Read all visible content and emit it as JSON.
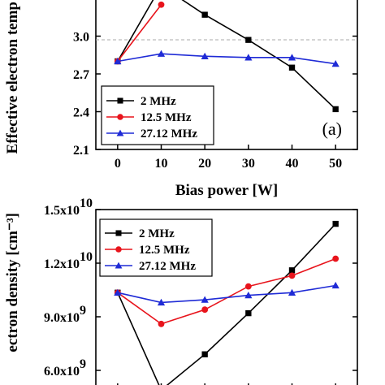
{
  "chart_data": [
    {
      "type": "line",
      "ylabel": "Effective electron temp",
      "xlabel": "Bias power [W]",
      "panel_label": "(a)",
      "x": [
        0,
        10,
        20,
        30,
        40,
        50
      ],
      "xlim": [
        -5,
        55
      ],
      "ylim": [
        2.1,
        3.3
      ],
      "y_ticks": [
        2.1,
        2.4,
        2.7,
        3.0
      ],
      "y_tick_labels": [
        "2.1",
        "2.4",
        "2.7",
        "3.0"
      ],
      "x_tick_labels": [
        "0",
        "10",
        "20",
        "30",
        "40",
        "50"
      ],
      "legend_position": "bottom-left",
      "series": [
        {
          "name": "2 MHz",
          "color": "#000000",
          "marker": "square",
          "values": [
            2.8,
            3.4,
            3.17,
            2.97,
            2.75,
            2.42
          ]
        },
        {
          "name": "12.5 MHz",
          "color": "#e8141c",
          "marker": "circle",
          "values": [
            2.8,
            3.25,
            null,
            null,
            null,
            null
          ]
        },
        {
          "name": "27.12 MHz",
          "color": "#1f2bd6",
          "marker": "triangle",
          "values": [
            2.8,
            2.86,
            2.84,
            2.83,
            2.83,
            2.78
          ]
        }
      ]
    },
    {
      "type": "line",
      "ylabel": "ectron density [cm⁻³]",
      "x": [
        0,
        10,
        20,
        30,
        40,
        50
      ],
      "xlim": [
        -5,
        55
      ],
      "ylim": [
        5000000000.0,
        15000000000.0
      ],
      "y_ticks": [
        6000000000.0,
        9000000000.0,
        12000000000.0,
        15000000000.0
      ],
      "y_tick_labels": [
        {
          "mantissa": "6.0x10",
          "exp": "9"
        },
        {
          "mantissa": "9.0x10",
          "exp": "9"
        },
        {
          "mantissa": "1.2x10",
          "exp": "10"
        },
        {
          "mantissa": "1.5x10",
          "exp": "10"
        }
      ],
      "legend_position": "top-left",
      "series": [
        {
          "name": "2 MHz",
          "color": "#000000",
          "marker": "square",
          "values": [
            10350000000.0,
            4900000000.0,
            6900000000.0,
            9200000000.0,
            11600000000.0,
            14200000000.0
          ]
        },
        {
          "name": "12.5 MHz",
          "color": "#e8141c",
          "marker": "circle",
          "values": [
            10350000000.0,
            8600000000.0,
            9400000000.0,
            10700000000.0,
            11300000000.0,
            12250000000.0
          ]
        },
        {
          "name": "27.12 MHz",
          "color": "#1f2bd6",
          "marker": "triangle",
          "values": [
            10350000000.0,
            9800000000.0,
            9950000000.0,
            10200000000.0,
            10350000000.0,
            10750000000.0
          ]
        }
      ]
    }
  ]
}
